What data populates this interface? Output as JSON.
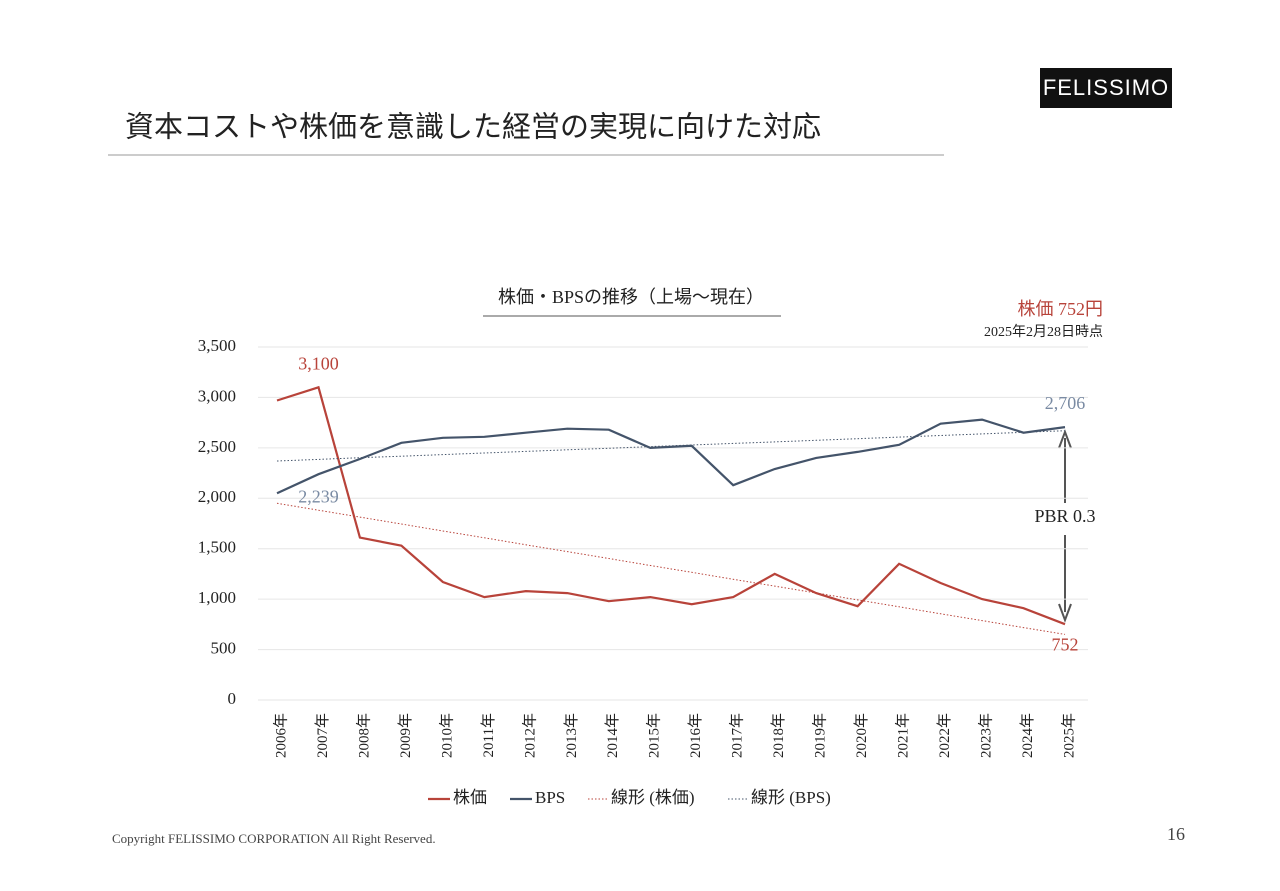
{
  "header": {
    "title": "資本コストや株価を意識した経営の実現に向けた対応",
    "logo": "FELISSIMO"
  },
  "footer": {
    "copyright": "Copyright FELISSIMO CORPORATION All Right Reserved.",
    "page": "16"
  },
  "chart_data": {
    "type": "line",
    "title": "株価・BPSの推移（上場～現在）",
    "annotations": [
      "株価 752円",
      "2025年2月28日時点",
      "PBR 0.3"
    ],
    "categories": [
      "2006年",
      "2007年",
      "2008年",
      "2009年",
      "2010年",
      "2011年",
      "2012年",
      "2013年",
      "2014年",
      "2015年",
      "2016年",
      "2017年",
      "2018年",
      "2019年",
      "2020年",
      "2021年",
      "2022年",
      "2023年",
      "2024年",
      "2025年"
    ],
    "series": [
      {
        "name": "株価",
        "color": "#b8433a",
        "values": [
          2970,
          3100,
          1610,
          1530,
          1170,
          1020,
          1080,
          1060,
          980,
          1020,
          950,
          1020,
          1250,
          1060,
          930,
          1350,
          1160,
          1000,
          910,
          752
        ],
        "value_labels": [
          null,
          "3,100",
          null,
          null,
          null,
          null,
          null,
          null,
          null,
          null,
          null,
          null,
          null,
          null,
          null,
          null,
          null,
          null,
          null,
          "752"
        ]
      },
      {
        "name": "BPS",
        "color": "#44546a",
        "values": [
          2050,
          2239,
          2390,
          2550,
          2600,
          2610,
          2650,
          2690,
          2680,
          2500,
          2520,
          2130,
          2290,
          2400,
          2460,
          2530,
          2740,
          2780,
          2650,
          2706
        ],
        "value_labels": [
          null,
          "2,239",
          null,
          null,
          null,
          null,
          null,
          null,
          null,
          null,
          null,
          null,
          null,
          null,
          null,
          null,
          null,
          null,
          null,
          "2,706"
        ]
      },
      {
        "name": "線形 (株価)",
        "color": "#b8433a",
        "dotted": true,
        "values": [
          1950,
          1882,
          1813,
          1745,
          1676,
          1608,
          1539,
          1471,
          1403,
          1334,
          1266,
          1197,
          1129,
          1061,
          992,
          924,
          855,
          787,
          718,
          650
        ]
      },
      {
        "name": "線形 (BPS)",
        "color": "#44546a",
        "dotted": true,
        "values": [
          2370,
          2386,
          2402,
          2417,
          2433,
          2449,
          2465,
          2481,
          2496,
          2512,
          2528,
          2544,
          2559,
          2575,
          2591,
          2607,
          2623,
          2638,
          2654,
          2670
        ]
      }
    ],
    "ylim": [
      0,
      3500
    ],
    "yticks": [
      0,
      {
        "value": 500,
        "label": "500"
      },
      {
        "value": 1000,
        "label": "1,000"
      },
      {
        "value": 1500,
        "label": "1,500"
      },
      {
        "value": 2000,
        "label": "2,000"
      },
      {
        "value": 2500,
        "label": "2,500"
      },
      {
        "value": 3000,
        "label": "3,000"
      },
      {
        "value": 3500,
        "label": "3,500"
      }
    ],
    "grid": true
  }
}
